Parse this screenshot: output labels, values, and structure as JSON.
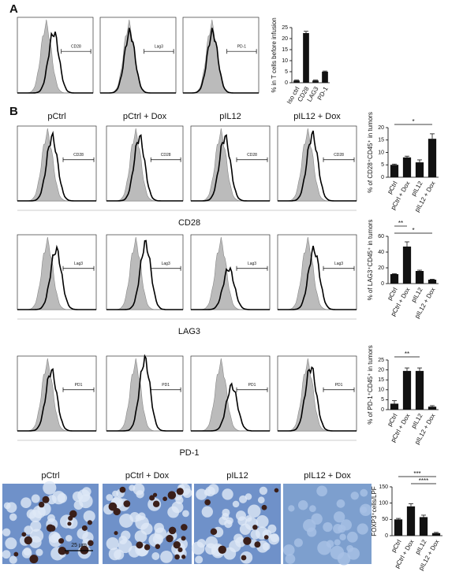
{
  "panels": [
    "A",
    "B"
  ],
  "columns": [
    "pCtrl",
    "pCtrl + Dox",
    "pIL12",
    "pIL12 + Dox"
  ],
  "flow": {
    "rows": [
      {
        "gates": [
          "CD28",
          "Lag3",
          "PD-1"
        ]
      },
      {
        "gates": [
          "CD28",
          "CD28",
          "CD28",
          "CD28"
        ],
        "axis_label": "CD28"
      },
      {
        "gates": [
          "Lag3",
          "Lag3",
          "Lag3",
          "Lag3"
        ],
        "axis_label": "LAG3"
      },
      {
        "gates": [
          "PD1",
          "PD1",
          "PD1",
          "PD1"
        ],
        "axis_label": "PD-1"
      }
    ]
  },
  "scale_bar": "25 µm",
  "chart_data": [
    {
      "type": "bar",
      "y_label": "% in T cells before infusion",
      "categories": [
        "Iso ctrl",
        "CD28",
        "LAG3",
        "PD-1"
      ],
      "values": [
        1,
        22.5,
        1,
        5
      ],
      "errors": [
        0.2,
        0.8,
        0.2,
        0.3
      ],
      "color": "#111111",
      "ylim": [
        0,
        25
      ],
      "yticks": [
        0,
        5,
        10,
        15,
        20,
        25
      ]
    },
    {
      "type": "bar",
      "y_label": "% of CD28⁺CD45⁺ in tumors",
      "categories": [
        "pCtrl",
        "pCtrl + Dox",
        "pIL12",
        "pIL12 + Dox"
      ],
      "values": [
        5,
        8,
        6,
        15.5
      ],
      "errors": [
        0.3,
        0.5,
        1,
        2
      ],
      "color": "#111111",
      "ylim": [
        0,
        20
      ],
      "yticks": [
        0,
        5,
        10,
        15,
        20
      ],
      "annotations": [
        "*"
      ]
    },
    {
      "type": "bar",
      "y_label": "% of LAG3⁺CD45⁺ in tumors",
      "categories": [
        "pCtrl",
        "pCtrl + Dox",
        "pIL12",
        "pIL12 + Dox"
      ],
      "values": [
        12,
        47,
        16,
        5
      ],
      "errors": [
        0.5,
        6,
        1,
        0.5
      ],
      "color": "#111111",
      "ylim": [
        0,
        60
      ],
      "yticks": [
        0,
        20,
        40,
        60
      ],
      "annotations": [
        "**",
        "*"
      ]
    },
    {
      "type": "bar",
      "y_label": "% of PD-1⁺CD45⁺ in tumors",
      "categories": [
        "pCtrl",
        "pCtrl + Dox",
        "pIL12",
        "pIL12 + Dox"
      ],
      "values": [
        3,
        19.5,
        19.5,
        1.5
      ],
      "errors": [
        1.5,
        1.5,
        1.5,
        0.5
      ],
      "color": "#111111",
      "ylim": [
        0,
        25
      ],
      "yticks": [
        0,
        5,
        10,
        15,
        20,
        25
      ],
      "annotations": [
        "**"
      ]
    },
    {
      "type": "bar",
      "y_label": "FOXP3⁺cells/LPF",
      "categories": [
        "pCtrl",
        "pCtrl + Dox",
        "pIL12",
        "pIL12 + Dox"
      ],
      "values": [
        50,
        90,
        57,
        8
      ],
      "errors": [
        3,
        8,
        6,
        2
      ],
      "color": "#111111",
      "ylim": [
        0,
        150
      ],
      "yticks": [
        0,
        50,
        100,
        150
      ],
      "annotations": [
        "***",
        "****"
      ]
    }
  ]
}
